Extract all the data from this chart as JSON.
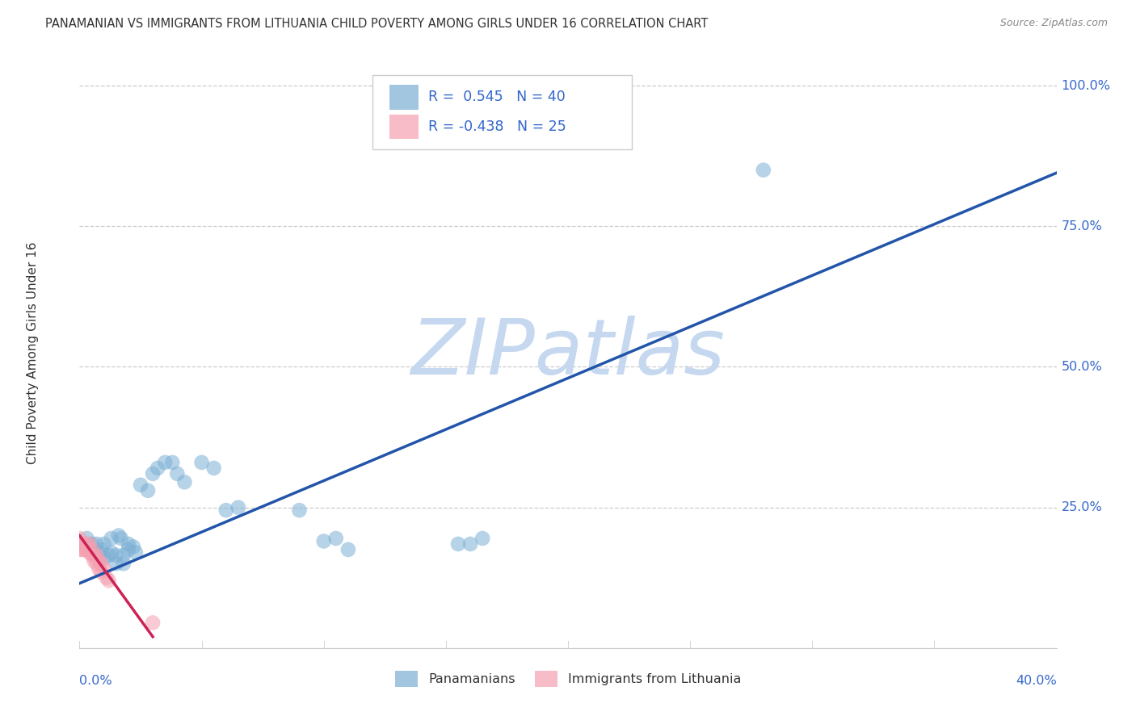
{
  "title": "PANAMANIAN VS IMMIGRANTS FROM LITHUANIA CHILD POVERTY AMONG GIRLS UNDER 16 CORRELATION CHART",
  "source": "Source: ZipAtlas.com",
  "ylabel": "Child Poverty Among Girls Under 16",
  "xlim": [
    0.0,
    0.4
  ],
  "ylim": [
    0.0,
    1.05
  ],
  "yticks": [
    0.0,
    0.25,
    0.5,
    0.75,
    1.0
  ],
  "ytick_labels": [
    "",
    "25.0%",
    "50.0%",
    "75.0%",
    "100.0%"
  ],
  "xtick_labels": [
    "0.0%",
    "",
    "",
    "",
    "",
    "",
    "",
    "",
    "40.0%"
  ],
  "xtick_vals": [
    0.0,
    0.05,
    0.1,
    0.15,
    0.2,
    0.25,
    0.3,
    0.35,
    0.4
  ],
  "legend_blue_r": "0.545",
  "legend_blue_n": "40",
  "legend_pink_r": "-0.438",
  "legend_pink_n": "25",
  "legend_labels": [
    "Panamanians",
    "Immigrants from Lithuania"
  ],
  "blue_color": "#7BAFD4",
  "pink_color": "#F4A0B0",
  "blue_line_color": "#2255AA",
  "pink_line_color": "#CC2255",
  "label_color": "#3366CC",
  "watermark": "ZIPatlas",
  "watermark_color": "#C5D8F0",
  "blue_scatter_x": [
    0.003,
    0.005,
    0.007,
    0.008,
    0.009,
    0.01,
    0.01,
    0.012,
    0.013,
    0.013,
    0.015,
    0.015,
    0.016,
    0.017,
    0.018,
    0.018,
    0.02,
    0.02,
    0.022,
    0.023,
    0.025,
    0.028,
    0.03,
    0.032,
    0.035,
    0.038,
    0.04,
    0.043,
    0.05,
    0.055,
    0.06,
    0.065,
    0.09,
    0.1,
    0.105,
    0.11,
    0.155,
    0.16,
    0.165,
    0.28
  ],
  "blue_scatter_y": [
    0.195,
    0.185,
    0.185,
    0.17,
    0.175,
    0.185,
    0.16,
    0.165,
    0.195,
    0.17,
    0.165,
    0.15,
    0.2,
    0.195,
    0.165,
    0.15,
    0.185,
    0.175,
    0.18,
    0.17,
    0.29,
    0.28,
    0.31,
    0.32,
    0.33,
    0.33,
    0.31,
    0.295,
    0.33,
    0.32,
    0.245,
    0.25,
    0.245,
    0.19,
    0.195,
    0.175,
    0.185,
    0.185,
    0.195,
    0.85
  ],
  "pink_scatter_x": [
    0.0,
    0.0,
    0.0,
    0.001,
    0.001,
    0.002,
    0.002,
    0.003,
    0.003,
    0.004,
    0.004,
    0.005,
    0.005,
    0.006,
    0.006,
    0.007,
    0.007,
    0.008,
    0.008,
    0.009,
    0.009,
    0.01,
    0.011,
    0.012,
    0.03
  ],
  "pink_scatter_y": [
    0.195,
    0.185,
    0.175,
    0.185,
    0.175,
    0.185,
    0.175,
    0.185,
    0.175,
    0.185,
    0.17,
    0.175,
    0.165,
    0.165,
    0.155,
    0.165,
    0.15,
    0.155,
    0.14,
    0.15,
    0.135,
    0.14,
    0.125,
    0.12,
    0.045
  ],
  "blue_trend_x": [
    0.0,
    0.4
  ],
  "blue_trend_y": [
    0.115,
    0.845
  ],
  "pink_trend_x": [
    0.0,
    0.03
  ],
  "pink_trend_y": [
    0.2,
    0.02
  ]
}
